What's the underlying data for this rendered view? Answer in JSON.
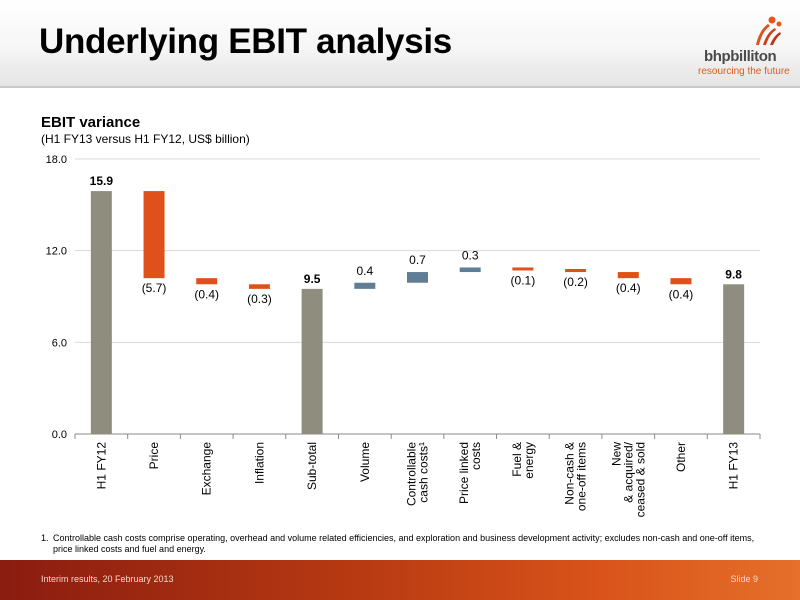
{
  "header": {
    "title": "Underlying EBIT analysis"
  },
  "logo": {
    "name": "bhpbilliton",
    "tagline": "resourcing the future"
  },
  "chart_data": {
    "type": "bar",
    "subtype": "waterfall",
    "title": "EBIT variance",
    "subtitle": "(H1 FY13 versus H1 FY12, US$ billion)",
    "ylim": [
      0,
      18
    ],
    "yticks": [
      "0.0",
      "6.0",
      "12.0",
      "18.0"
    ],
    "grid": true,
    "colors": {
      "total": "#8f8e7e",
      "negative": "#e0501a",
      "positive": "#5f7e95"
    },
    "categories": [
      [
        "H1 FY12"
      ],
      [
        "Price"
      ],
      [
        "Exchange"
      ],
      [
        "Inflation"
      ],
      [
        "Sub-total"
      ],
      [
        "Volume"
      ],
      [
        "Controllable",
        "cash costs¹"
      ],
      [
        "Price linked",
        "costs"
      ],
      [
        "Fuel &",
        "energy"
      ],
      [
        "Non-cash &",
        "one-off items"
      ],
      [
        "New",
        "& acquired/",
        "ceased & sold"
      ],
      [
        "Other"
      ],
      [
        "H1 FY13"
      ]
    ],
    "bars": [
      {
        "kind": "total",
        "start": 0,
        "end": 15.9,
        "label": "15.9"
      },
      {
        "kind": "negative",
        "start": 15.9,
        "end": 10.2,
        "label": "(5.7)"
      },
      {
        "kind": "negative",
        "start": 10.2,
        "end": 9.8,
        "label": "(0.4)"
      },
      {
        "kind": "negative",
        "start": 9.8,
        "end": 9.5,
        "label": "(0.3)"
      },
      {
        "kind": "total",
        "start": 0,
        "end": 9.5,
        "label": "9.5"
      },
      {
        "kind": "positive",
        "start": 9.5,
        "end": 9.9,
        "label": "0.4"
      },
      {
        "kind": "positive",
        "start": 9.9,
        "end": 10.6,
        "label": "0.7"
      },
      {
        "kind": "positive",
        "start": 10.6,
        "end": 10.9,
        "label": "0.3"
      },
      {
        "kind": "negative",
        "start": 10.9,
        "end": 10.8,
        "label": "(0.1)"
      },
      {
        "kind": "negative",
        "start": 10.8,
        "end": 10.6,
        "label": "(0.2)"
      },
      {
        "kind": "negative",
        "start": 10.6,
        "end": 10.2,
        "label": "(0.4)"
      },
      {
        "kind": "negative",
        "start": 10.2,
        "end": 9.8,
        "label": "(0.4)"
      },
      {
        "kind": "total",
        "start": 0,
        "end": 9.8,
        "label": "9.8"
      }
    ]
  },
  "footnote": {
    "number": "1.",
    "text": "Controllable cash costs comprise operating, overhead and volume related efficiencies, and exploration and business development activity; excludes non-cash and one-off items, price linked costs and fuel and energy."
  },
  "footer": {
    "left": "Interim results, 20 February 2013",
    "right": "Slide 9"
  }
}
